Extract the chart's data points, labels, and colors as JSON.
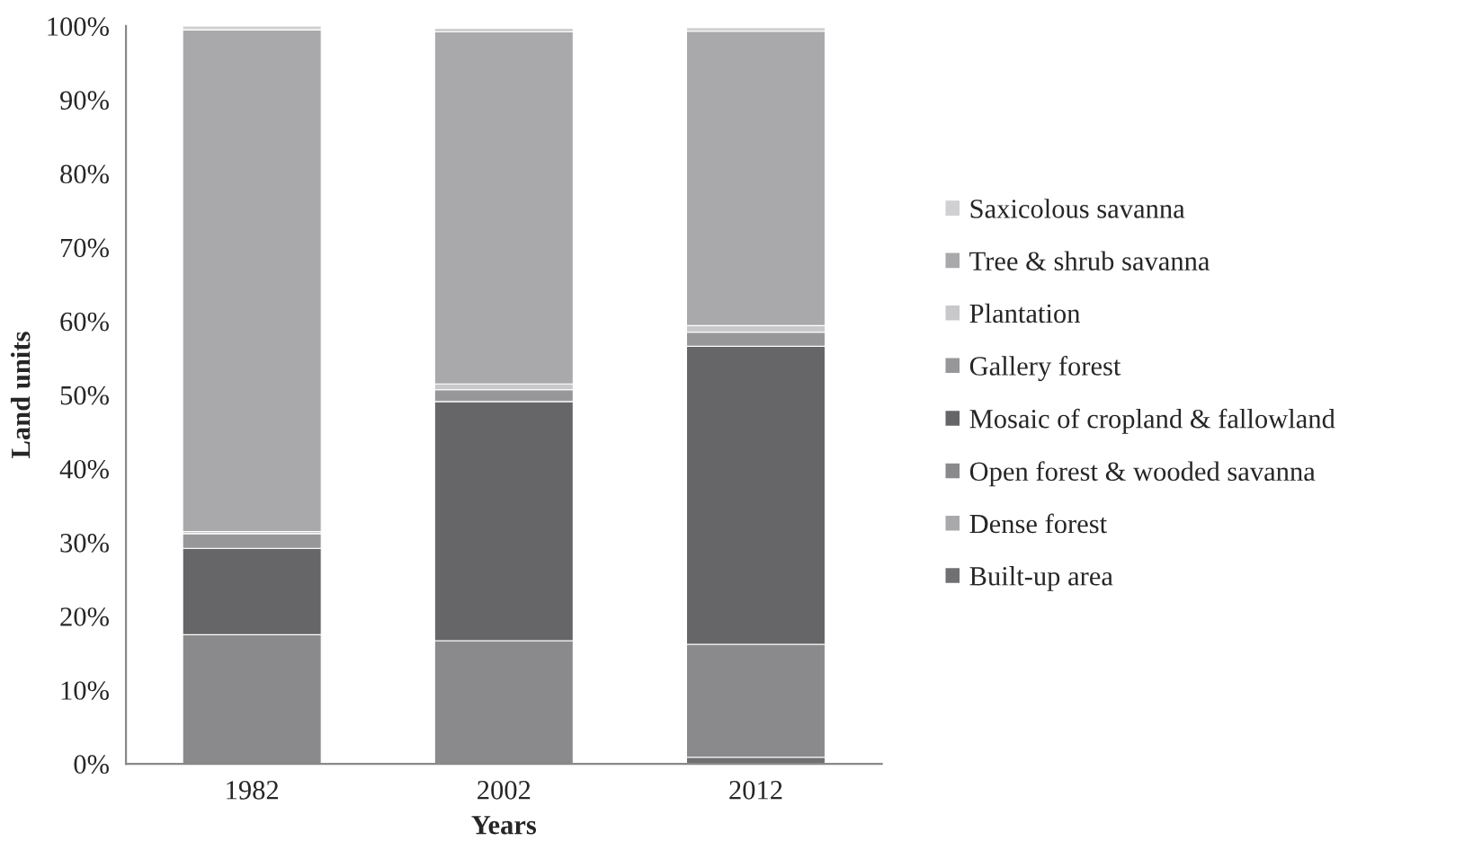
{
  "chart_data": {
    "type": "bar",
    "stacked": true,
    "xlabel": "Years",
    "ylabel": "Land units",
    "categories": [
      "1982",
      "2002",
      "2012"
    ],
    "series": [
      {
        "name": "Built-up area",
        "color": "#707073",
        "values": [
          0,
          null,
          0.9
        ]
      },
      {
        "name": "Dense forest",
        "color": "#a9a9ac",
        "values": [
          0,
          0,
          null
        ]
      },
      {
        "name": "Open forest & wooded savanna",
        "color": "#8a8a8d",
        "values": [
          17.5,
          16.7,
          15.3
        ]
      },
      {
        "name": "Mosaic of cropland & fallowland",
        "color": "#666668",
        "values": [
          11.7,
          32.4,
          40.4
        ]
      },
      {
        "name": "Gallery forest",
        "color": "#97979a",
        "values": [
          2.0,
          1.6,
          1.9
        ]
      },
      {
        "name": "Plantation",
        "color": "#c8c8ca",
        "values": [
          0.3,
          0.8,
          0.9
        ]
      },
      {
        "name": "Tree & shrub savanna",
        "color": "#a9a9ac",
        "values": [
          68.0,
          47.7,
          39.9
        ]
      },
      {
        "name": "Saxicolous savanna",
        "color": "#d0d0d2",
        "values": [
          0.5,
          0.5,
          0.5
        ]
      }
    ],
    "ylim": [
      0,
      100
    ],
    "yticks": [
      {
        "value": 0,
        "label": "0%"
      },
      {
        "value": 10,
        "label": "10%"
      },
      {
        "value": 20,
        "label": "20%"
      },
      {
        "value": 30,
        "label": "30%"
      },
      {
        "value": 40,
        "label": "40%"
      },
      {
        "value": 50,
        "label": "50%"
      },
      {
        "value": 60,
        "label": "60%"
      },
      {
        "value": 70,
        "label": "70%"
      },
      {
        "value": 80,
        "label": "80%"
      },
      {
        "value": 90,
        "label": "90%"
      },
      {
        "value": 100,
        "label": "100%"
      }
    ],
    "grid": false,
    "legend": "right"
  }
}
